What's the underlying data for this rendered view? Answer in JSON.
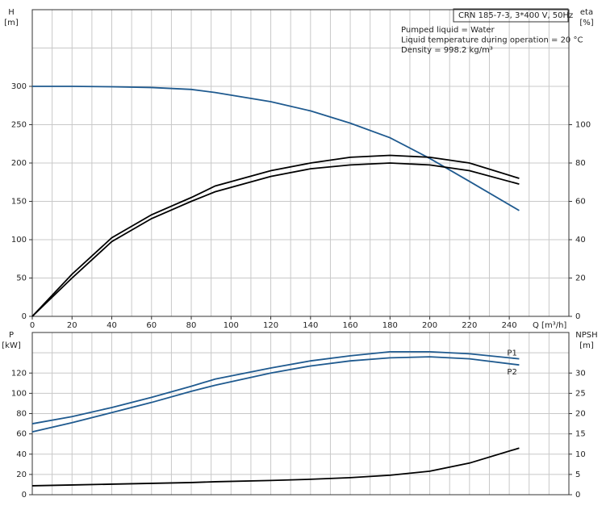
{
  "chart_data": [
    {
      "type": "line",
      "title": "CRN 185-7-3, 3*400 V, 50Hz",
      "annotations": [
        "Pumped liquid = Water",
        "Liquid temperature during operation = 20 °C",
        "Density = 998.2 kg/m³"
      ],
      "xlabel": "Q [m³/h]",
      "ylabel": "H",
      "yunit": "[m]",
      "y2label": "eta",
      "y2unit": "[%]",
      "x": [
        0,
        20,
        40,
        60,
        80,
        92,
        120,
        140,
        160,
        180,
        200,
        220,
        245
      ],
      "series": [
        {
          "color": "#1f5a8f",
          "axis": "y",
          "values": [
            300,
            300,
            299.5,
            298.5,
            296,
            292,
            280,
            268,
            252,
            233,
            206,
            176,
            138
          ]
        },
        {
          "color": "#000000",
          "axis": "y2",
          "values": [
            0,
            22,
            41,
            53,
            62,
            68,
            76,
            80,
            83,
            84,
            83,
            80,
            72
          ]
        },
        {
          "color": "#000000",
          "axis": "y2",
          "values": [
            0,
            20,
            39,
            51,
            60,
            65,
            73,
            77,
            79,
            80,
            79,
            76,
            69
          ]
        }
      ],
      "xlim": [
        0,
        270
      ],
      "xticks": [
        0,
        20,
        40,
        60,
        80,
        100,
        120,
        140,
        160,
        180,
        200,
        220,
        240
      ],
      "xgrid": [
        10,
        20,
        30,
        40,
        50,
        60,
        70,
        80,
        90,
        100,
        110,
        120,
        130,
        140,
        150,
        160,
        170,
        180,
        190,
        200,
        210,
        220,
        230,
        240,
        250,
        260
      ],
      "ylim": [
        0,
        400
      ],
      "yticks": [
        0,
        50,
        100,
        150,
        200,
        250,
        300
      ],
      "ygrid": [
        50,
        100,
        150,
        200,
        250,
        300,
        350
      ],
      "y2lim": [
        0,
        160
      ],
      "y2ticks": [
        0,
        20,
        40,
        60,
        80,
        100
      ],
      "grid": true
    },
    {
      "type": "line",
      "ylabel": "P",
      "yunit": "[kW]",
      "y2label": "NPSH",
      "y2unit": "[m]",
      "x": [
        0,
        20,
        40,
        60,
        80,
        92,
        120,
        140,
        160,
        180,
        200,
        220,
        245
      ],
      "series": [
        {
          "name": "P1",
          "color": "#1f5a8f",
          "axis": "y",
          "values": [
            70,
            77,
            86,
            96,
            107,
            114,
            125,
            132,
            137,
            141,
            141,
            139,
            134
          ]
        },
        {
          "name": "P2",
          "color": "#1f5a8f",
          "axis": "y",
          "values": [
            62,
            71,
            81,
            91,
            102,
            108,
            120,
            127,
            132,
            135,
            136,
            134,
            128
          ]
        },
        {
          "color": "#000000",
          "axis": "y2",
          "values": [
            2.2,
            2.4,
            2.6,
            2.8,
            3.0,
            3.2,
            3.5,
            3.8,
            4.2,
            4.8,
            5.8,
            7.8,
            11.5
          ]
        }
      ],
      "xlim": [
        0,
        270
      ],
      "xgrid": [
        10,
        20,
        30,
        40,
        50,
        60,
        70,
        80,
        90,
        100,
        110,
        120,
        130,
        140,
        150,
        160,
        170,
        180,
        190,
        200,
        210,
        220,
        230,
        240,
        250,
        260
      ],
      "ylim": [
        0,
        160
      ],
      "yticks": [
        0,
        20,
        40,
        60,
        80,
        100,
        120
      ],
      "ygrid": [
        20,
        40,
        60,
        80,
        100,
        120,
        140
      ],
      "y2lim": [
        0,
        40
      ],
      "y2ticks": [
        0,
        5,
        10,
        15,
        20,
        25,
        30
      ],
      "grid": true
    }
  ]
}
